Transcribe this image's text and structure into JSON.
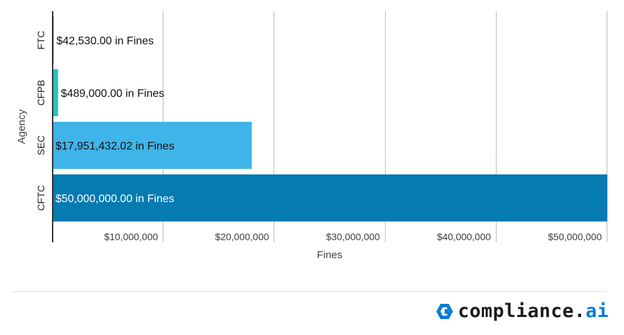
{
  "chart_data": {
    "type": "bar",
    "orientation": "horizontal",
    "categories": [
      "FTC",
      "CFPB",
      "SEC",
      "CFTC"
    ],
    "values": [
      42530.0,
      489000.0,
      17951432.02,
      50000000.0
    ],
    "data_labels": [
      "$42,530.00 in Fines",
      "$489,000.00 in Fines",
      "$17,951,432.02 in Fines",
      "$50,000,000.00 in Fines"
    ],
    "colors": [
      "#0b7fb0",
      "#1ec8c0",
      "#3fb4e8",
      "#057bb1"
    ],
    "label_colors": [
      "#111111",
      "#111111",
      "#111111",
      "#ffffff"
    ],
    "xlabel": "Fines",
    "ylabel": "Agency",
    "xlim": [
      0,
      50000000
    ],
    "xticks": [
      10000000,
      20000000,
      30000000,
      40000000,
      50000000
    ],
    "xtick_labels": [
      "$10,000,000",
      "$20,000,000",
      "$30,000,000",
      "$40,000,000",
      "$50,000,000"
    ],
    "grid": true,
    "legend": "none"
  },
  "brand": {
    "name_main": "compliance.",
    "name_accent": "ai",
    "icon": "compliance-ai-logo-icon",
    "accent_color": "#0a7cd6"
  }
}
